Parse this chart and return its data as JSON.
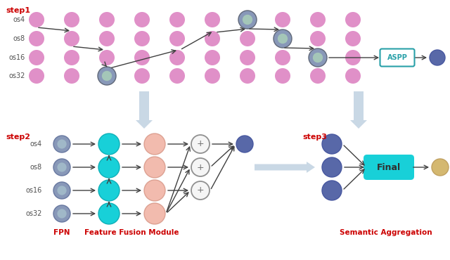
{
  "bg_color": "#ffffff",
  "pink_color": "#e090c8",
  "selected_color_outer": "#9aa8c0",
  "selected_color_inner": "#b0ccc0",
  "blue_node_color": "#5868a8",
  "cyan_color": "#18d0d8",
  "salmon_color": "#f0b0a0",
  "gold_color": "#d4b870",
  "arrow_color": "#404040",
  "fat_arrow_color": "#b8ccdd",
  "aspp_border": "#28a0a8",
  "aspp_text": "#28a0a8",
  "label_red": "#cc0000",
  "os_label_color": "#505050",
  "step1_label": "step1",
  "step2_label": "step2",
  "step3_label": "step3",
  "os_labels": [
    "os4",
    "os8",
    "os16",
    "os32"
  ],
  "fpn_label": "FPN",
  "ffm_label": "Feature Fusion Module",
  "sa_label": "Semantic Aggregation",
  "aspp_label": "ASPP",
  "final_label": "Final"
}
